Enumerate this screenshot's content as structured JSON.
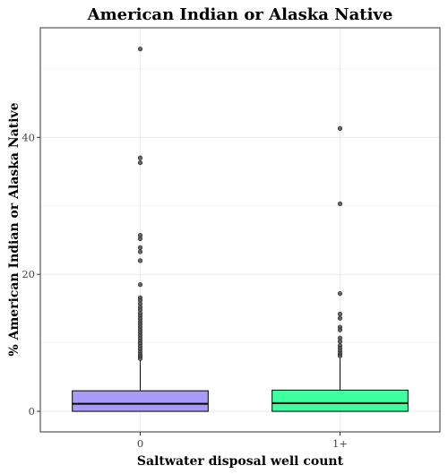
{
  "chart_data": {
    "type": "box",
    "title": "American Indian or Alaska Native",
    "xlabel": "Saltwater disposal well count",
    "ylabel": "% American Indian or Alaska Native",
    "ylim": [
      -3,
      56
    ],
    "yticks": [
      0,
      20,
      40
    ],
    "y_minor_gridlines": [
      10,
      30,
      50
    ],
    "grid": true,
    "categories": [
      "0",
      "1+"
    ],
    "boxes": [
      {
        "name": "0",
        "fill": "#a69bf9",
        "whisker_low": 0,
        "q1": 0,
        "median": 1.1,
        "q3": 3.0,
        "whisker_high": 7.5,
        "outliers": [
          52.9,
          37.0,
          36.3,
          25.7,
          25.2,
          23.9,
          23.3,
          22.0,
          18.5,
          16.6,
          16.2,
          15.7,
          15.2,
          14.8,
          14.3,
          13.9,
          13.5,
          13.1,
          12.7,
          12.3,
          11.9,
          11.5,
          11.1,
          10.7,
          10.3,
          9.9,
          9.5,
          9.1,
          8.7,
          8.3,
          8.0,
          7.7
        ]
      },
      {
        "name": "1+",
        "fill": "#3dff9f",
        "whisker_low": 0,
        "q1": 0,
        "median": 1.2,
        "q3": 3.1,
        "whisker_high": 7.7,
        "outliers": [
          41.3,
          30.3,
          17.2,
          14.2,
          13.6,
          12.3,
          11.9,
          10.7,
          10.2,
          9.6,
          9.2,
          8.8,
          8.4,
          8.1
        ]
      }
    ],
    "colors": {
      "panel_border": "#333333",
      "grid": "#ebebeb",
      "outlier": "#4d4d4d"
    }
  }
}
